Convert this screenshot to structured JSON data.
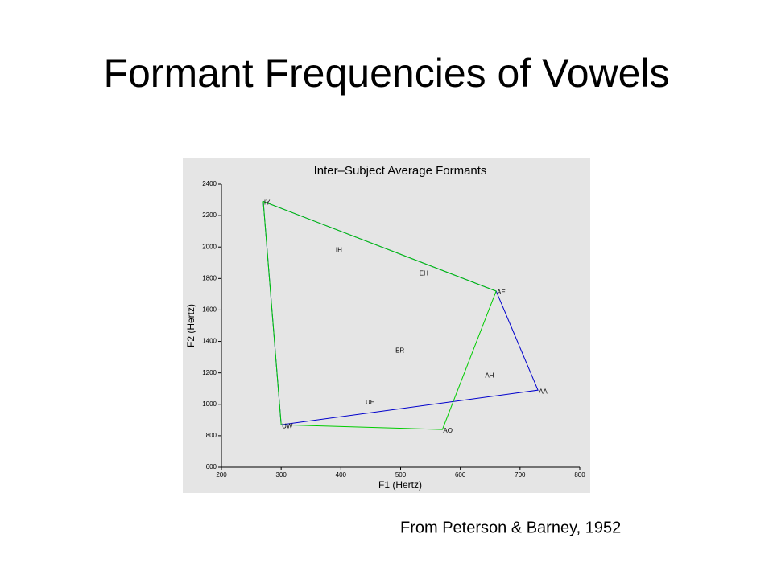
{
  "slide_title": "Formant Frequencies of Vowels",
  "source": "From Peterson & Barney, 1952",
  "chart_data": {
    "type": "line",
    "title": "Inter–Subject Average Formants",
    "x_label": "F1 (Hertz)",
    "y_label": "F2 (Hertz)",
    "xlim": [
      200,
      800
    ],
    "ylim": [
      600,
      2400
    ],
    "xticks": [
      200,
      300,
      400,
      500,
      600,
      700,
      800
    ],
    "yticks": [
      600,
      800,
      1000,
      1200,
      1400,
      1600,
      1800,
      2000,
      2200,
      2400
    ],
    "series": [
      {
        "color": "#0000cc",
        "x": [
          270,
          660,
          730,
          300,
          270
        ],
        "values": [
          2290,
          1720,
          1090,
          870,
          2290
        ]
      },
      {
        "color": "#00cc00",
        "x": [
          270,
          660,
          570,
          300,
          270
        ],
        "values": [
          2290,
          1720,
          840,
          870,
          2290
        ]
      }
    ],
    "points": {
      "labels": [
        "IY",
        "IH",
        "EH",
        "AE",
        "AH",
        "AA",
        "AO",
        "UH",
        "UW",
        "ER"
      ],
      "x": [
        270,
        390,
        530,
        660,
        640,
        730,
        570,
        440,
        300,
        490
      ],
      "values": [
        2290,
        1990,
        1840,
        1720,
        1190,
        1090,
        840,
        1020,
        870,
        1350
      ]
    }
  }
}
